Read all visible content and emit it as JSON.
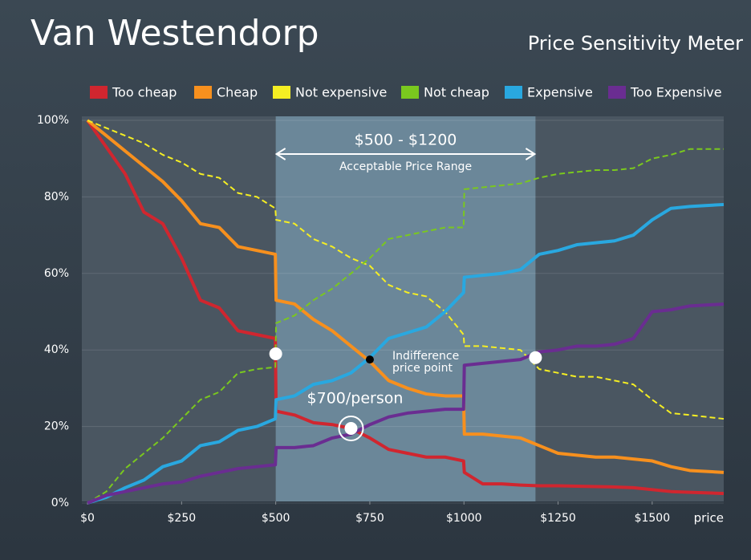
{
  "chart_data": {
    "type": "line",
    "title": "Van Westendorp",
    "subtitle": "Price Sensitivity Meter",
    "x_label": "price",
    "x": [
      0,
      50,
      100,
      150,
      200,
      250,
      300,
      350,
      400,
      450,
      499,
      501,
      550,
      600,
      650,
      700,
      750,
      800,
      850,
      900,
      950,
      999,
      1001,
      1050,
      1100,
      1150,
      1200,
      1250,
      1300,
      1350,
      1400,
      1450,
      1500,
      1550,
      1600,
      1690
    ],
    "series": [
      {
        "name": "Too cheap",
        "color": "#d0262f",
        "dashed": false,
        "values": [
          100,
          93,
          86,
          76,
          73,
          64,
          53,
          51,
          45,
          44,
          43,
          24,
          23,
          21,
          20.5,
          19.5,
          17,
          14,
          13,
          12,
          12,
          11,
          8,
          5,
          5,
          4.7,
          4.5,
          4.5,
          4.4,
          4.3,
          4.2,
          4,
          3.5,
          3,
          2.8,
          2.5
        ]
      },
      {
        "name": "Cheap",
        "color": "#f7901e",
        "dashed": false,
        "values": [
          100,
          96,
          92,
          88,
          84,
          79,
          73,
          72,
          67,
          66,
          65,
          53,
          52,
          48,
          45,
          41,
          37,
          32,
          30,
          28.5,
          28,
          28,
          18,
          18,
          17.5,
          17,
          15,
          13,
          12.5,
          12,
          12,
          11.5,
          11,
          9.5,
          8.5,
          8
        ]
      },
      {
        "name": "Not expensive",
        "color": "#f5ee23",
        "dashed": true,
        "values": [
          100,
          98,
          96,
          94,
          91,
          89,
          86,
          85,
          81,
          80,
          77,
          74,
          73,
          69,
          67,
          64,
          62,
          57,
          55,
          54,
          50,
          44,
          41,
          41,
          40.5,
          40,
          35,
          34,
          33,
          33,
          32,
          31,
          27,
          23.5,
          23,
          22
        ]
      },
      {
        "name": "Not cheap",
        "color": "#7ac81e",
        "dashed": true,
        "values": [
          0,
          3,
          9,
          13,
          17,
          22,
          27,
          29,
          34,
          35,
          35.5,
          47,
          49,
          53,
          56,
          60,
          64,
          69,
          70,
          71,
          72,
          72,
          82,
          82.5,
          83,
          83.5,
          85,
          86,
          86.5,
          87,
          87,
          87.5,
          90,
          91,
          92.5,
          92.5
        ]
      },
      {
        "name": "Expensive",
        "color": "#29a8e0",
        "dashed": false,
        "values": [
          0,
          1.5,
          4,
          6,
          9.5,
          11,
          15,
          16,
          19,
          20,
          22,
          27,
          28,
          31,
          32,
          34,
          38,
          43,
          44.5,
          46,
          50,
          55,
          59,
          59.5,
          60,
          61,
          65,
          66,
          67.5,
          68,
          68.5,
          70,
          74,
          77,
          77.5,
          78
        ]
      },
      {
        "name": "Too Expensive",
        "color": "#6a2d91",
        "dashed": false,
        "values": [
          0,
          2,
          3,
          4,
          5,
          5.5,
          7,
          8,
          9,
          9.5,
          10,
          14.5,
          14.5,
          15,
          17,
          18,
          20.5,
          22.5,
          23.5,
          24,
          24.5,
          24.5,
          36,
          36.5,
          37,
          37.5,
          39.5,
          40,
          41,
          41,
          41.5,
          43,
          50,
          50.5,
          51.5,
          52
        ]
      }
    ],
    "xlim": [
      -15,
      1690
    ],
    "ylim": [
      0,
      100
    ],
    "xticks": [
      {
        "value": 0,
        "label": "$0"
      },
      {
        "value": 250,
        "label": "$250"
      },
      {
        "value": 500,
        "label": "$500"
      },
      {
        "value": 750,
        "label": "$750"
      },
      {
        "value": 1000,
        "label": "$1000"
      },
      {
        "value": 1250,
        "label": "$1250"
      },
      {
        "value": 1500,
        "label": "$1500"
      }
    ],
    "yticks": [
      {
        "value": 0,
        "label": "0%"
      },
      {
        "value": 20,
        "label": "20%"
      },
      {
        "value": 40,
        "label": "40%"
      },
      {
        "value": 60,
        "label": "60%"
      },
      {
        "value": 80,
        "label": "80%"
      },
      {
        "value": 100,
        "label": "100%"
      }
    ],
    "grid": true,
    "range": {
      "label": "$500 - $1200",
      "sublabel": "Acceptable Price Range",
      "from": 500,
      "to": 1190
    },
    "points": [
      {
        "x": 500,
        "y": 39
      },
      {
        "x": 1190,
        "y": 38
      }
    ],
    "indifference": {
      "x": 750,
      "y": 37.5,
      "label": [
        "Indifference",
        "price point"
      ]
    },
    "target": {
      "x": 700,
      "y": 19.5,
      "label": "$700/person"
    }
  }
}
